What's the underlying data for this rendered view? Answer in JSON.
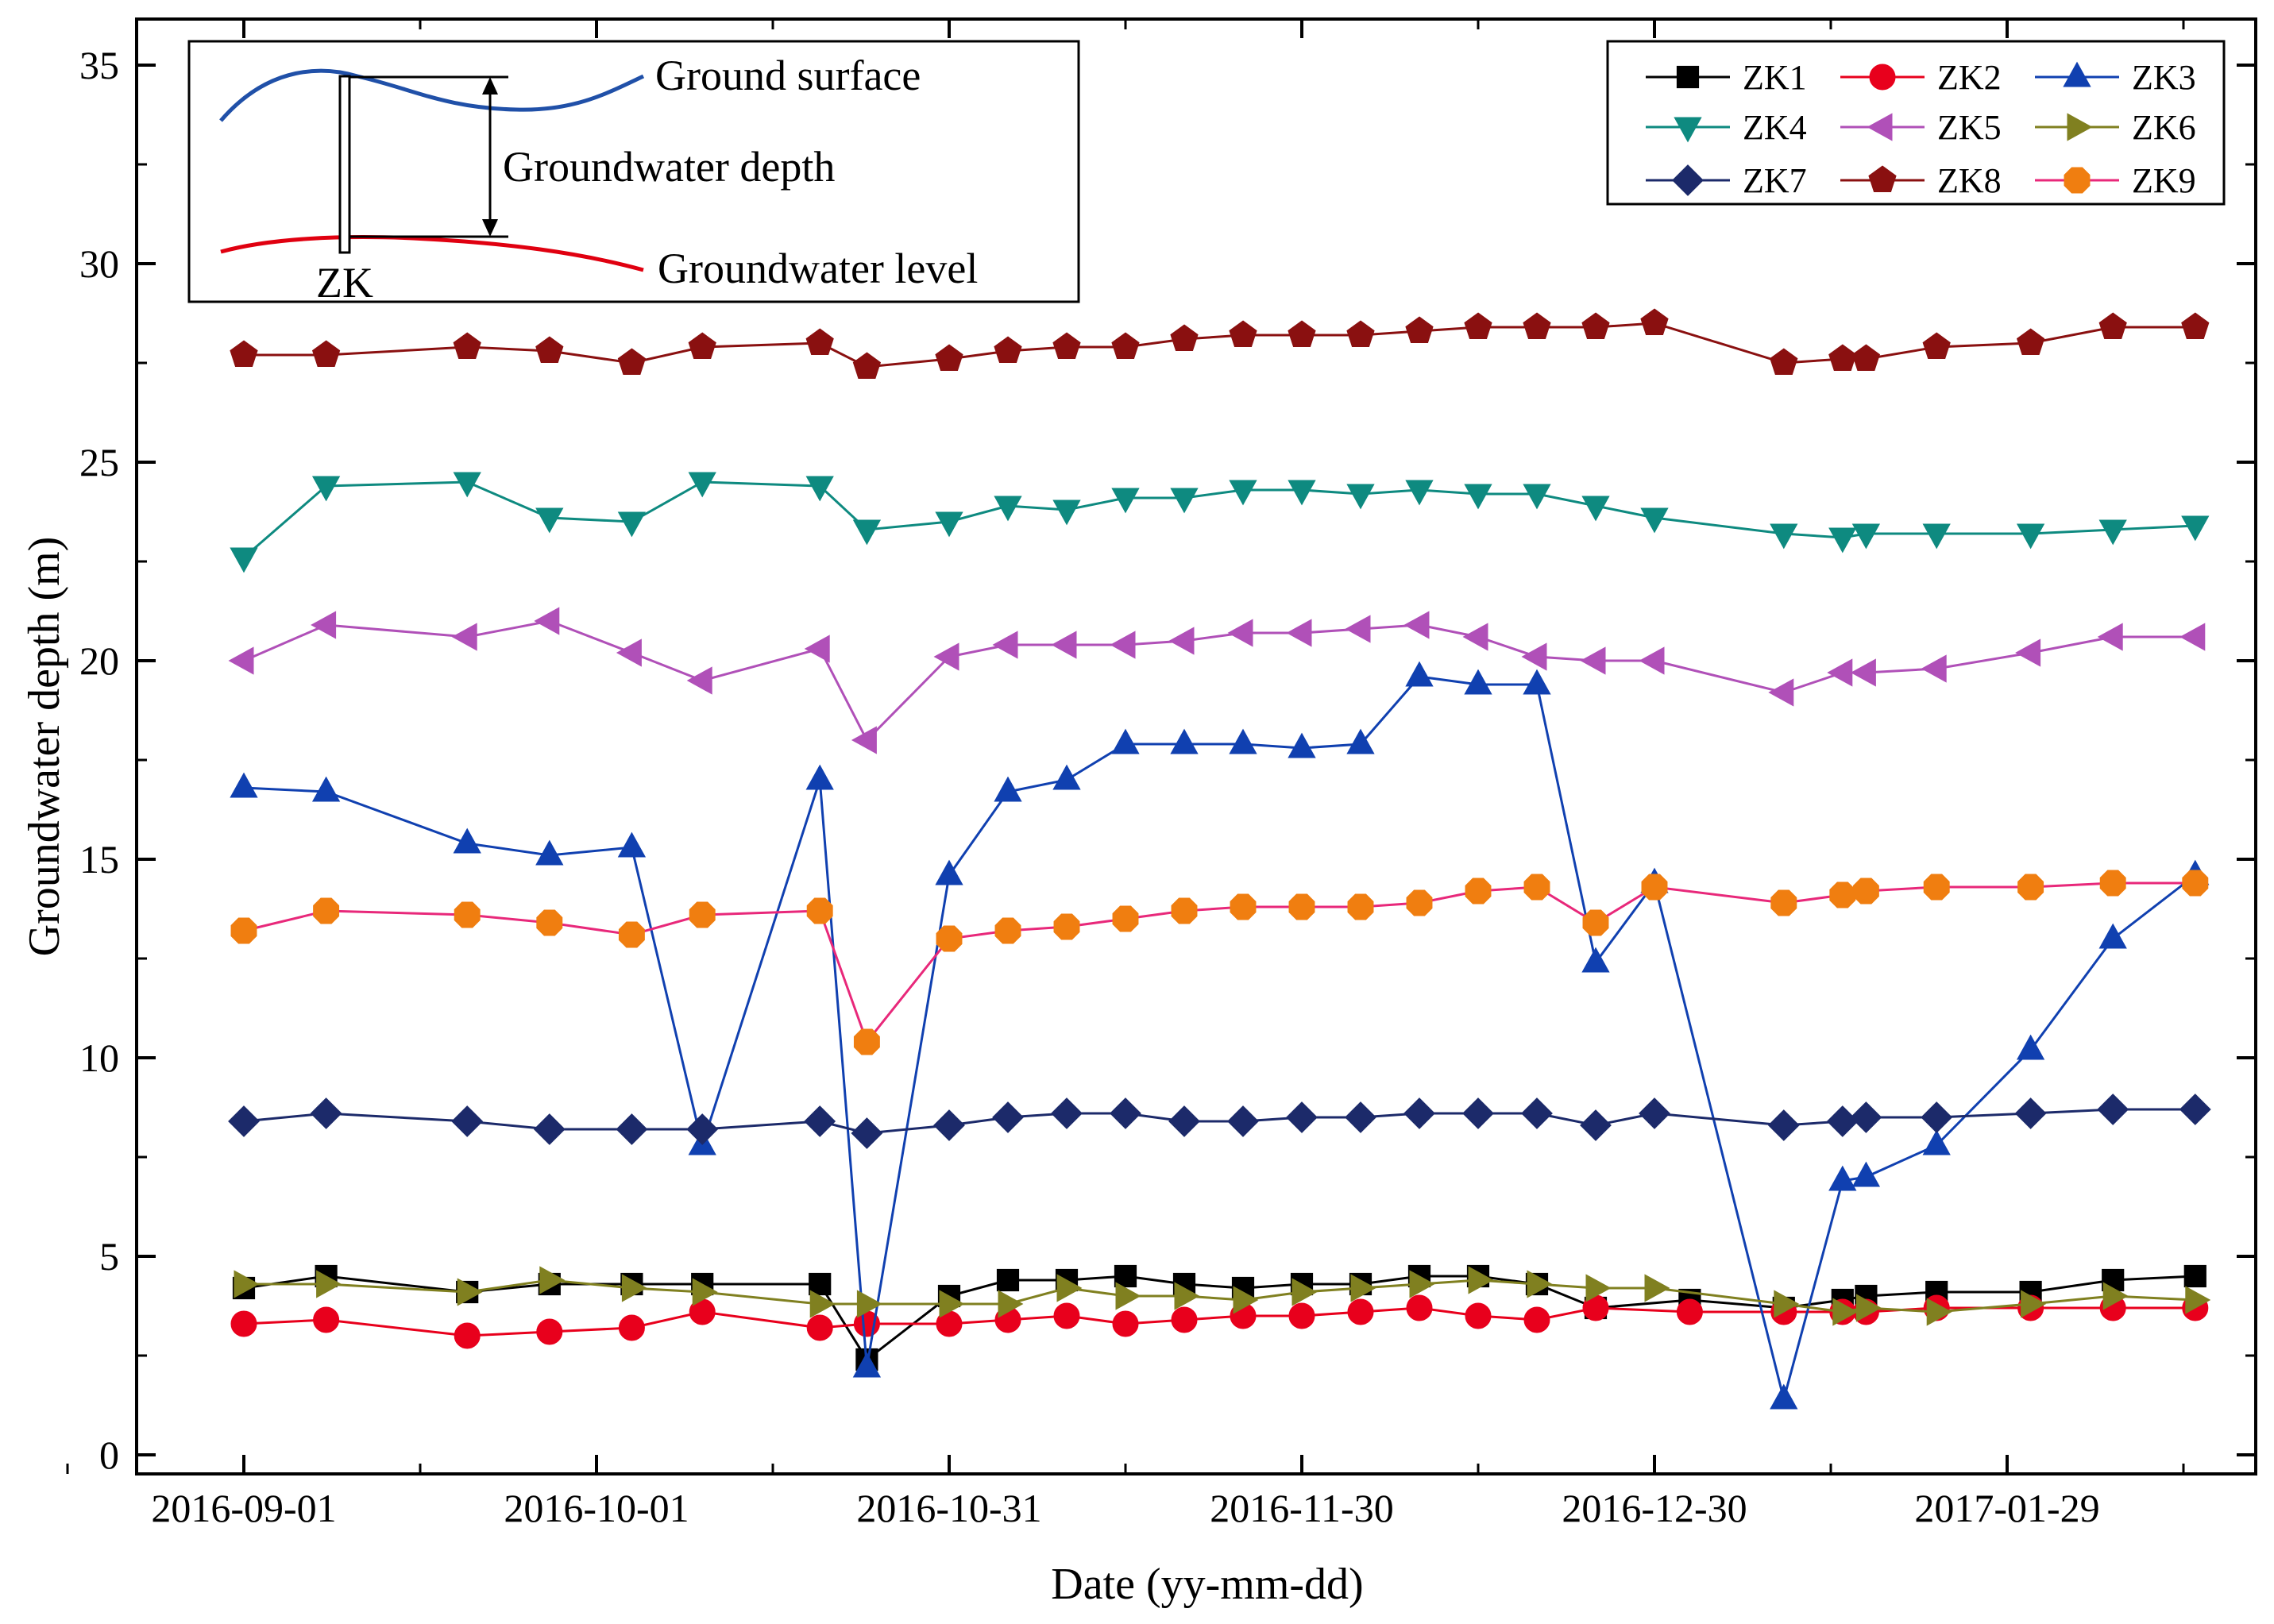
{
  "chart_data": {
    "type": "line",
    "title": "",
    "xlabel": "Date (yy-mm-dd)",
    "ylabel": "Groundwater depth (m)",
    "ylim": [
      0,
      35
    ],
    "y_ticks": [
      0,
      5,
      10,
      15,
      20,
      25,
      30,
      35
    ],
    "x_tick_labels": [
      "2016-09-01",
      "2016-10-01",
      "2016-10-31",
      "2016-11-30",
      "2016-12-30",
      "2017-01-29"
    ],
    "x_unit": "days since 2016-09-01",
    "xlim": [
      -9,
      178
    ],
    "x_tick_values": [
      0,
      30,
      60,
      90,
      120,
      150
    ],
    "x": [
      0,
      7,
      19,
      26,
      33,
      39,
      49,
      53,
      60,
      65,
      70,
      75,
      80,
      85,
      90,
      95,
      100,
      105,
      110,
      115,
      120,
      123,
      131,
      136,
      138,
      144,
      152,
      159,
      166
    ],
    "legend_position": "top-right",
    "series": [
      {
        "name": "ZK1",
        "color": "#000000",
        "marker": "square",
        "values": [
          4.2,
          4.5,
          4.1,
          4.3,
          4.3,
          4.3,
          4.3,
          2.4,
          4.0,
          4.4,
          4.4,
          4.5,
          4.3,
          4.2,
          4.3,
          4.3,
          4.5,
          4.5,
          4.3,
          3.7,
          null,
          3.9,
          3.7,
          3.9,
          4.0,
          4.1,
          4.1,
          4.4,
          4.5
        ]
      },
      {
        "name": "ZK2",
        "color": "#e8001c",
        "marker": "circle",
        "values": [
          3.3,
          3.4,
          3.0,
          3.1,
          3.2,
          3.6,
          3.2,
          3.3,
          3.3,
          3.4,
          3.5,
          3.3,
          3.4,
          3.5,
          3.5,
          3.6,
          3.7,
          3.5,
          3.4,
          3.7,
          null,
          3.6,
          3.6,
          3.6,
          3.6,
          3.7,
          3.7,
          3.7,
          3.7
        ]
      },
      {
        "name": "ZK3",
        "color": "#1040b0",
        "marker": "triangle-up",
        "values": [
          16.8,
          16.7,
          15.4,
          15.1,
          15.3,
          7.8,
          17.0,
          2.2,
          14.6,
          16.7,
          17.0,
          17.9,
          17.9,
          17.9,
          17.8,
          17.9,
          19.6,
          19.4,
          19.4,
          12.4,
          14.4,
          null,
          1.4,
          6.9,
          7.0,
          7.8,
          10.2,
          13.0,
          14.6
        ]
      },
      {
        "name": "ZK4",
        "color": "#0e8a80",
        "marker": "triangle-down",
        "values": [
          22.6,
          24.4,
          24.5,
          23.6,
          23.5,
          24.5,
          24.4,
          23.3,
          23.5,
          23.9,
          23.8,
          24.1,
          24.1,
          24.3,
          24.3,
          24.2,
          24.3,
          24.2,
          24.2,
          23.9,
          23.6,
          null,
          23.2,
          23.1,
          23.2,
          23.2,
          23.2,
          23.3,
          23.4
        ]
      },
      {
        "name": "ZK5",
        "color": "#b050b8",
        "marker": "triangle-left",
        "values": [
          20.0,
          20.9,
          20.6,
          21.0,
          20.2,
          19.5,
          20.3,
          18.0,
          20.1,
          20.4,
          20.4,
          20.4,
          20.5,
          20.7,
          20.7,
          20.8,
          20.9,
          20.6,
          20.1,
          20.0,
          20.0,
          null,
          19.2,
          19.7,
          19.7,
          19.8,
          20.2,
          20.6,
          20.6
        ]
      },
      {
        "name": "ZK6",
        "color": "#808020",
        "marker": "triangle-right",
        "values": [
          4.3,
          4.3,
          4.1,
          4.4,
          4.2,
          4.1,
          3.8,
          3.8,
          3.8,
          3.8,
          4.2,
          4.0,
          4.0,
          3.9,
          4.1,
          4.2,
          4.3,
          4.4,
          4.3,
          4.2,
          4.2,
          null,
          3.8,
          3.6,
          3.7,
          3.6,
          3.8,
          4.0,
          3.9
        ]
      },
      {
        "name": "ZK7",
        "color": "#1c2a6a",
        "marker": "diamond",
        "values": [
          8.4,
          8.6,
          8.4,
          8.2,
          8.2,
          8.2,
          8.4,
          8.1,
          8.3,
          8.5,
          8.6,
          8.6,
          8.4,
          8.4,
          8.5,
          8.5,
          8.6,
          8.6,
          8.6,
          8.3,
          8.6,
          null,
          8.3,
          8.4,
          8.5,
          8.5,
          8.6,
          8.7,
          8.7
        ]
      },
      {
        "name": "ZK8",
        "color": "#8a1010",
        "marker": "pentagon",
        "values": [
          27.7,
          27.7,
          27.9,
          27.8,
          27.5,
          27.9,
          28.0,
          27.4,
          27.6,
          27.8,
          27.9,
          27.9,
          28.1,
          28.2,
          28.2,
          28.2,
          28.3,
          28.4,
          28.4,
          28.4,
          28.5,
          null,
          27.5,
          27.6,
          27.6,
          27.9,
          28.0,
          28.4,
          28.4
        ]
      },
      {
        "name": "ZK9",
        "color": "#f07e10",
        "line_color": "#e8287a",
        "marker": "octagon",
        "values": [
          13.2,
          13.7,
          13.6,
          13.4,
          13.1,
          13.6,
          13.7,
          10.4,
          13.0,
          13.2,
          13.3,
          13.5,
          13.7,
          13.8,
          13.8,
          13.8,
          13.9,
          14.2,
          14.3,
          13.4,
          14.3,
          null,
          13.9,
          14.1,
          14.2,
          14.3,
          14.3,
          14.4,
          14.4
        ]
      }
    ],
    "inset": {
      "labels": [
        "Ground surface",
        "Groundwater depth",
        "Groundwater level",
        "ZK"
      ]
    }
  }
}
